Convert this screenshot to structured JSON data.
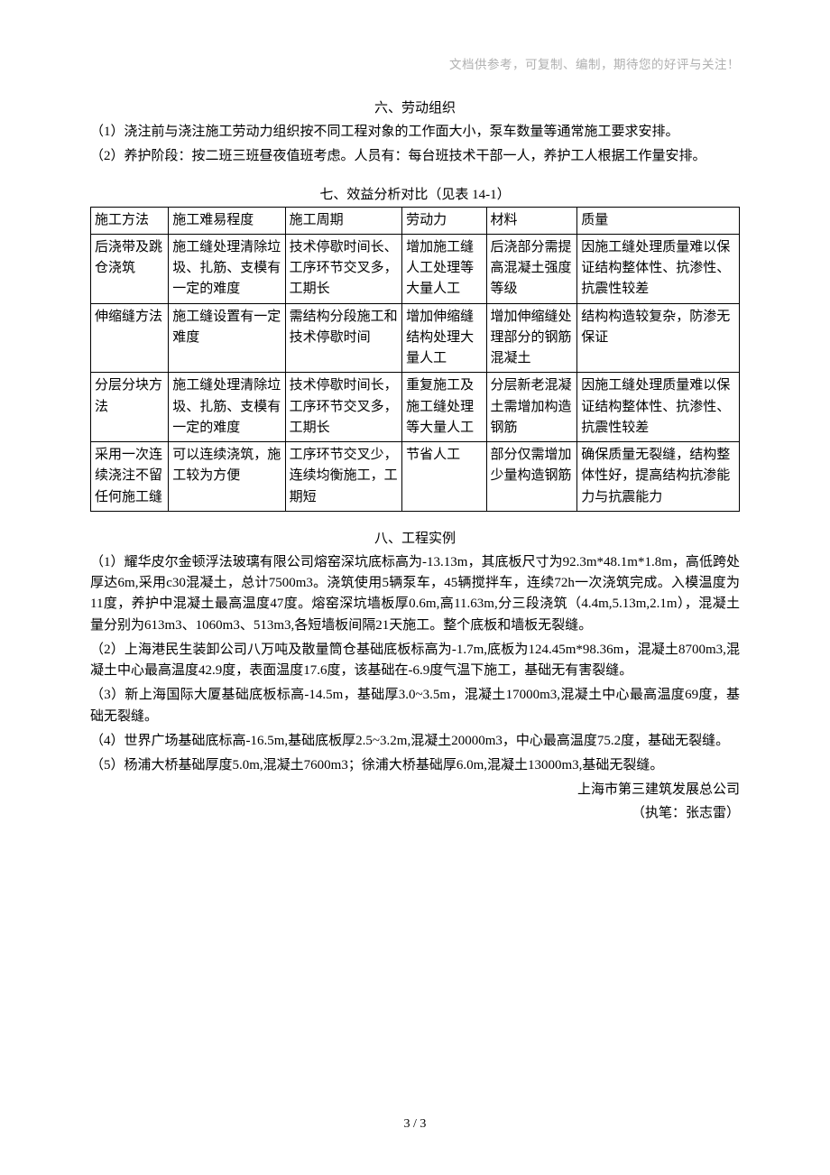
{
  "header_note": "文档供参考，可复制、编制，期待您的好评与关注！",
  "section6": {
    "title": "六、劳动组织",
    "p1": "（1）浇注前与浇注施工劳动力组织按不同工程对象的工作面大小，泵车数量等通常施工要求安排。",
    "p2": "（2）养护阶段：按二班三班昼夜值班考虑。人员有：每台班技术干部一人，养护工人根据工作量安排。"
  },
  "table": {
    "caption": "七、效益分析对比（见表 14-1）",
    "col_widths": [
      "12%",
      "18%",
      "18%",
      "13%",
      "14%",
      "25%"
    ],
    "header": [
      "施工方法",
      "施工难易程度",
      "施工周期",
      "劳动力",
      "材料",
      "质量"
    ],
    "rows": [
      [
        "后浇带及跳仓浇筑",
        "施工缝处理清除垃圾、扎筋、支模有一定的难度",
        "技术停歇时间长、工序环节交叉多，工期长",
        "增加施工缝人工处理等大量人工",
        "后浇部分需提高混凝土强度等级",
        "因施工缝处理质量难以保证结构整体性、抗渗性、抗震性较差"
      ],
      [
        "伸缩缝方法",
        "施工缝设置有一定难度",
        "需结构分段施工和技术停歇时间",
        "增加伸缩缝结构处理大量人工",
        "增加伸缩缝处理部分的钢筋混凝土",
        "结构构造较复杂，防渗无保证"
      ],
      [
        "分层分块方法",
        "施工缝处理清除垃圾、扎筋、支模有一定的难度",
        "技术停歇时间长，工序环节交叉多，工期长",
        "重复施工及施工缝处理等大量人工",
        "分层新老混凝土需增加构造钢筋",
        "因施工缝处理质量难以保证结构整体性、抗渗性、抗震性较差"
      ],
      [
        "采用一次连续浇注不留任何施工缝",
        "可以连续浇筑，施工较为方便",
        "工序环节交叉少，连续均衡施工，工期短",
        "节省人工",
        "部分仅需增加少量构造钢筋",
        "确保质量无裂缝，结构整体性好，提高结构抗渗能力与抗震能力"
      ]
    ]
  },
  "section8": {
    "title": "八、工程实例",
    "p1": "（1）耀华皮尔金顿浮法玻璃有限公司熔窑深坑底标高为-13.13m，其底板尺寸为92.3m*48.1m*1.8m，高低跨处厚达6m,采用c30混凝土，总计7500m3。浇筑使用5辆泵车，45辆搅拌车，连续72h一次浇筑完成。入模温度为11度，养护中混凝土最高温度47度。熔窑深坑墙板厚0.6m,高11.63m,分三段浇筑（4.4m,5.13m,2.1m），混凝土量分别为613m3、1060m3、513m3,各短墙板间隔21天施工。整个底板和墙板无裂缝。",
    "p2": "（2）上海港民生装卸公司八万吨及散量筒仓基础底板标高为-1.7m,底板为124.45m*98.36m，混凝土8700m3,混凝土中心最高温度42.9度，表面温度17.6度，该基础在-6.9度气温下施工，基础无有害裂缝。",
    "p3": "（3）新上海国际大厦基础底板标高-14.5m，基础厚3.0~3.5m，混凝土17000m3,混凝土中心最高温度69度，基础无裂缝。",
    "p4": "（4）世界广场基础底标高-16.5m,基础底板厚2.5~3.2m,混凝土20000m3，中心最高温度75.2度，基础无裂缝。",
    "p5": "（5）杨浦大桥基础厚度5.0m,混凝土7600m3；徐浦大桥基础厚6.0m,混凝土13000m3,基础无裂缝。"
  },
  "signature": {
    "org": "上海市第三建筑发展总公司",
    "author": "（执笔：张志雷）"
  },
  "footer": "3  /  3"
}
